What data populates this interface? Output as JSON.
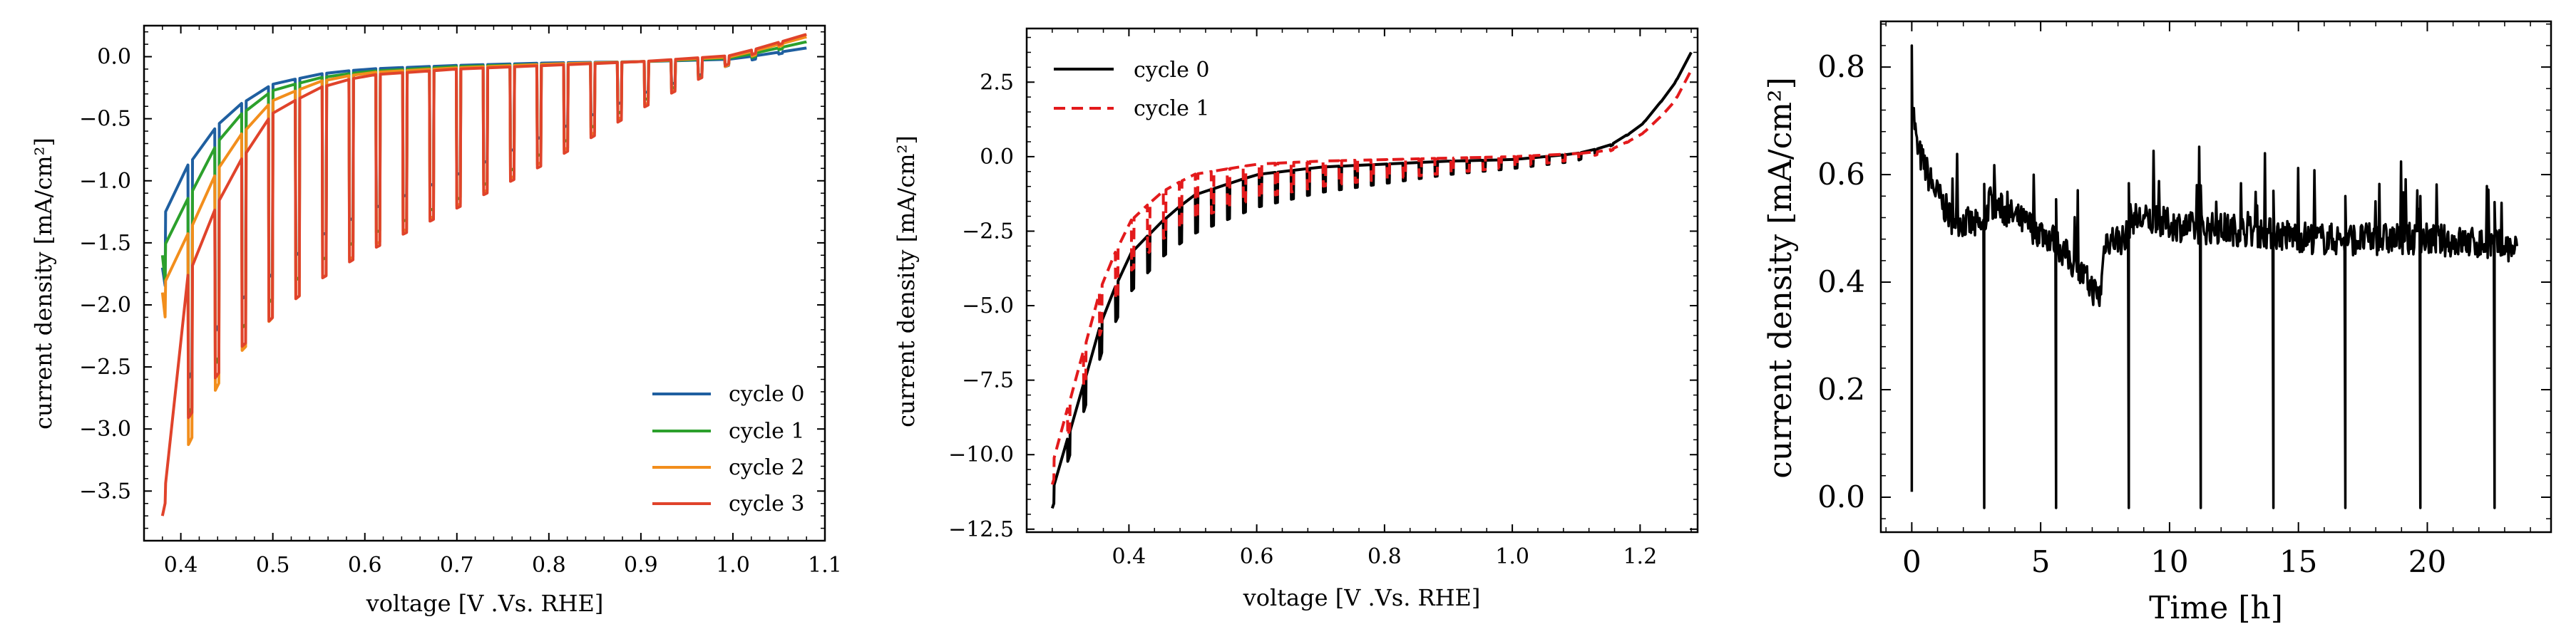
{
  "chart_data": [
    {
      "type": "line",
      "xlabel": "voltage [V .Vs. RHE]",
      "ylabel": "current density [mA/cm²]",
      "xlim": [
        0.36,
        1.1
      ],
      "ylim": [
        -3.9,
        0.25
      ],
      "xticks": [
        0.4,
        0.5,
        0.6,
        0.7,
        0.8,
        0.9,
        1.0,
        1.1
      ],
      "xticklabels": [
        "0.4",
        "0.5",
        "0.6",
        "0.7",
        "0.8",
        "0.9",
        "1.0",
        "1.1"
      ],
      "yticks": [
        0.0,
        -0.5,
        -1.0,
        -1.5,
        -2.0,
        -2.5,
        -3.0,
        -3.5
      ],
      "yticklabels": [
        "0.0",
        "−0.5",
        "−1.0",
        "−1.5",
        "−2.0",
        "−2.5",
        "−3.0",
        "−3.5"
      ],
      "legend_position": "bottom-right",
      "style": "square-wave cycles stepping between lower and upper envelopes",
      "series": [
        {
          "name": "cycle 0",
          "color": "#1f5fa0",
          "steps": 24,
          "lower": [
            [
              0.38,
              -1.7
            ],
            [
              0.4,
              -2.7
            ],
            [
              0.45,
              -2.05
            ],
            [
              0.5,
              -1.75
            ],
            [
              0.55,
              -1.45
            ],
            [
              0.6,
              -1.25
            ],
            [
              0.7,
              -0.95
            ],
            [
              0.8,
              -0.62
            ],
            [
              0.9,
              -0.3
            ],
            [
              1.0,
              -0.06
            ],
            [
              1.08,
              0.07
            ]
          ],
          "upper": [
            [
              0.38,
              -1.3
            ],
            [
              0.4,
              -0.95
            ],
            [
              0.45,
              -0.45
            ],
            [
              0.5,
              -0.22
            ],
            [
              0.55,
              -0.14
            ],
            [
              0.6,
              -0.1
            ],
            [
              0.7,
              -0.07
            ],
            [
              0.8,
              -0.05
            ],
            [
              0.9,
              -0.04
            ],
            [
              1.0,
              -0.02
            ],
            [
              1.08,
              0.07
            ]
          ]
        },
        {
          "name": "cycle 1",
          "color": "#2ca02c",
          "steps": 24,
          "lower": [
            [
              0.38,
              -1.6
            ],
            [
              0.4,
              -3.0
            ],
            [
              0.45,
              -2.3
            ],
            [
              0.5,
              -1.95
            ],
            [
              0.55,
              -1.65
            ],
            [
              0.6,
              -1.45
            ],
            [
              0.7,
              -1.15
            ],
            [
              0.8,
              -0.75
            ],
            [
              0.9,
              -0.36
            ],
            [
              1.0,
              -0.05
            ],
            [
              1.08,
              0.12
            ]
          ],
          "upper": [
            [
              0.38,
              -1.55
            ],
            [
              0.4,
              -1.25
            ],
            [
              0.45,
              -0.55
            ],
            [
              0.5,
              -0.27
            ],
            [
              0.55,
              -0.17
            ],
            [
              0.6,
              -0.12
            ],
            [
              0.7,
              -0.08
            ],
            [
              0.8,
              -0.06
            ],
            [
              0.9,
              -0.04
            ],
            [
              1.0,
              -0.01
            ],
            [
              1.08,
              0.12
            ]
          ]
        },
        {
          "name": "cycle 2",
          "color": "#f28e1c",
          "steps": 24,
          "lower": [
            [
              0.38,
              -1.9
            ],
            [
              0.4,
              -3.25
            ],
            [
              0.45,
              -2.5
            ],
            [
              0.5,
              -2.1
            ],
            [
              0.55,
              -1.8
            ],
            [
              0.6,
              -1.55
            ],
            [
              0.7,
              -1.2
            ],
            [
              0.8,
              -0.82
            ],
            [
              0.9,
              -0.4
            ],
            [
              1.0,
              -0.05
            ],
            [
              1.08,
              0.16
            ]
          ],
          "upper": [
            [
              0.38,
              -1.85
            ],
            [
              0.4,
              -1.55
            ],
            [
              0.45,
              -0.75
            ],
            [
              0.5,
              -0.35
            ],
            [
              0.55,
              -0.2
            ],
            [
              0.6,
              -0.13
            ],
            [
              0.7,
              -0.09
            ],
            [
              0.8,
              -0.06
            ],
            [
              0.9,
              -0.04
            ],
            [
              1.0,
              0.0
            ],
            [
              1.08,
              0.16
            ]
          ]
        },
        {
          "name": "cycle 3",
          "color": "#e0432b",
          "steps": 24,
          "lower": [
            [
              0.38,
              -3.7
            ],
            [
              0.4,
              -3.0
            ],
            [
              0.45,
              -2.45
            ],
            [
              0.5,
              -2.1
            ],
            [
              0.55,
              -1.8
            ],
            [
              0.6,
              -1.58
            ],
            [
              0.7,
              -1.22
            ],
            [
              0.8,
              -0.85
            ],
            [
              0.9,
              -0.42
            ],
            [
              1.0,
              -0.04
            ],
            [
              1.08,
              0.18
            ]
          ],
          "upper": [
            [
              0.38,
              -3.7
            ],
            [
              0.4,
              -1.9
            ],
            [
              0.45,
              -1.0
            ],
            [
              0.5,
              -0.45
            ],
            [
              0.55,
              -0.25
            ],
            [
              0.6,
              -0.15
            ],
            [
              0.7,
              -0.1
            ],
            [
              0.8,
              -0.07
            ],
            [
              0.9,
              -0.04
            ],
            [
              1.0,
              0.01
            ],
            [
              1.08,
              0.18
            ]
          ]
        }
      ]
    },
    {
      "type": "line",
      "xlabel": "voltage [V .Vs. RHE]",
      "ylabel": "current density [mA/cm²]",
      "xlim": [
        0.24,
        1.29
      ],
      "ylim": [
        -12.6,
        4.3
      ],
      "xticks": [
        0.4,
        0.6,
        0.8,
        1.0,
        1.2
      ],
      "xticklabels": [
        "0.4",
        "0.6",
        "0.8",
        "1.0",
        "1.2"
      ],
      "yticks": [
        2.5,
        0.0,
        -2.5,
        -5.0,
        -7.5,
        -10.0,
        -12.5
      ],
      "yticklabels": [
        "2.5",
        "0.0",
        "−2.5",
        "−5.0",
        "−7.5",
        "−10.0",
        "−12.5"
      ],
      "legend_position": "top-left",
      "style": "square-wave cycles stepping between lower and upper envelopes",
      "series": [
        {
          "name": "cycle 0",
          "color": "#000000",
          "dash": "solid",
          "steps": 40,
          "lower": [
            [
              0.28,
              -11.8
            ],
            [
              0.32,
              -9.2
            ],
            [
              0.36,
              -6.4
            ],
            [
              0.4,
              -4.6
            ],
            [
              0.45,
              -3.4
            ],
            [
              0.5,
              -2.6
            ],
            [
              0.6,
              -1.7
            ],
            [
              0.7,
              -1.2
            ],
            [
              0.8,
              -0.9
            ],
            [
              0.9,
              -0.6
            ],
            [
              1.0,
              -0.4
            ],
            [
              1.1,
              -0.15
            ],
            [
              1.15,
              0.3
            ],
            [
              1.2,
              1.0
            ],
            [
              1.25,
              2.3
            ],
            [
              1.28,
              3.5
            ]
          ],
          "upper": [
            [
              0.28,
              -11.2
            ],
            [
              0.32,
              -8.3
            ],
            [
              0.36,
              -5.3
            ],
            [
              0.4,
              -3.3
            ],
            [
              0.45,
              -2.2
            ],
            [
              0.5,
              -1.3
            ],
            [
              0.6,
              -0.6
            ],
            [
              0.7,
              -0.35
            ],
            [
              0.8,
              -0.25
            ],
            [
              0.9,
              -0.15
            ],
            [
              1.0,
              -0.1
            ],
            [
              1.1,
              0.1
            ],
            [
              1.15,
              0.35
            ],
            [
              1.2,
              1.0
            ],
            [
              1.25,
              2.3
            ],
            [
              1.28,
              3.5
            ]
          ]
        },
        {
          "name": "cycle 1",
          "color": "#e31a1c",
          "dash": "dashed",
          "steps": 40,
          "lower": [
            [
              0.28,
              -11.0
            ],
            [
              0.32,
              -8.3
            ],
            [
              0.36,
              -5.6
            ],
            [
              0.4,
              -3.9
            ],
            [
              0.45,
              -2.8
            ],
            [
              0.5,
              -2.1
            ],
            [
              0.6,
              -1.4
            ],
            [
              0.7,
              -1.0
            ],
            [
              0.8,
              -0.75
            ],
            [
              0.9,
              -0.55
            ],
            [
              1.0,
              -0.35
            ],
            [
              1.1,
              -0.1
            ],
            [
              1.15,
              0.15
            ],
            [
              1.2,
              0.7
            ],
            [
              1.25,
              1.7
            ],
            [
              1.28,
              2.9
            ]
          ],
          "upper": [
            [
              0.28,
              -10.3
            ],
            [
              0.32,
              -7.2
            ],
            [
              0.36,
              -4.1
            ],
            [
              0.4,
              -2.2
            ],
            [
              0.45,
              -1.2
            ],
            [
              0.5,
              -0.6
            ],
            [
              0.6,
              -0.25
            ],
            [
              0.7,
              -0.15
            ],
            [
              0.8,
              -0.1
            ],
            [
              0.9,
              -0.05
            ],
            [
              1.0,
              0.0
            ],
            [
              1.1,
              0.1
            ],
            [
              1.15,
              0.2
            ],
            [
              1.2,
              0.7
            ],
            [
              1.25,
              1.7
            ],
            [
              1.28,
              2.9
            ]
          ]
        }
      ]
    },
    {
      "type": "line",
      "xlabel": "Time [h]",
      "ylabel": "current density [mA/cm²]",
      "xlim": [
        -1.2,
        24.8
      ],
      "ylim": [
        -0.065,
        0.885
      ],
      "xticks": [
        0,
        5,
        10,
        15,
        20
      ],
      "xticklabels": [
        "0",
        "5",
        "10",
        "15",
        "20"
      ],
      "yticks": [
        0.0,
        0.2,
        0.4,
        0.6,
        0.8
      ],
      "yticklabels": [
        "0.0",
        "0.2",
        "0.4",
        "0.6",
        "0.8"
      ],
      "legend_position": "none",
      "series": [
        {
          "color": "#000000",
          "baseline": [
            [
              0.0,
              0.75
            ],
            [
              0.2,
              0.65
            ],
            [
              0.8,
              0.58
            ],
            [
              1.5,
              0.52
            ],
            [
              2.8,
              0.5
            ],
            [
              3.0,
              0.55
            ],
            [
              4.0,
              0.52
            ],
            [
              5.5,
              0.48
            ],
            [
              6.5,
              0.42
            ],
            [
              7.3,
              0.37
            ],
            [
              7.5,
              0.48
            ],
            [
              8.3,
              0.48
            ],
            [
              8.5,
              0.52
            ],
            [
              11.0,
              0.5
            ],
            [
              12.0,
              0.5
            ],
            [
              14.0,
              0.49
            ],
            [
              16.0,
              0.48
            ],
            [
              18.0,
              0.48
            ],
            [
              20.0,
              0.48
            ],
            [
              22.5,
              0.47
            ],
            [
              23.5,
              0.46
            ]
          ],
          "start_dip": 0.01,
          "start_peak": 0.84,
          "dropouts": [
            [
              2.8,
              -0.02
            ],
            [
              5.6,
              -0.02
            ],
            [
              8.4,
              -0.02
            ],
            [
              11.2,
              -0.02
            ],
            [
              14.0,
              -0.02
            ],
            [
              16.8,
              -0.02
            ],
            [
              19.7,
              -0.02
            ],
            [
              22.6,
              -0.02
            ]
          ],
          "x_end": 23.5
        }
      ]
    }
  ]
}
